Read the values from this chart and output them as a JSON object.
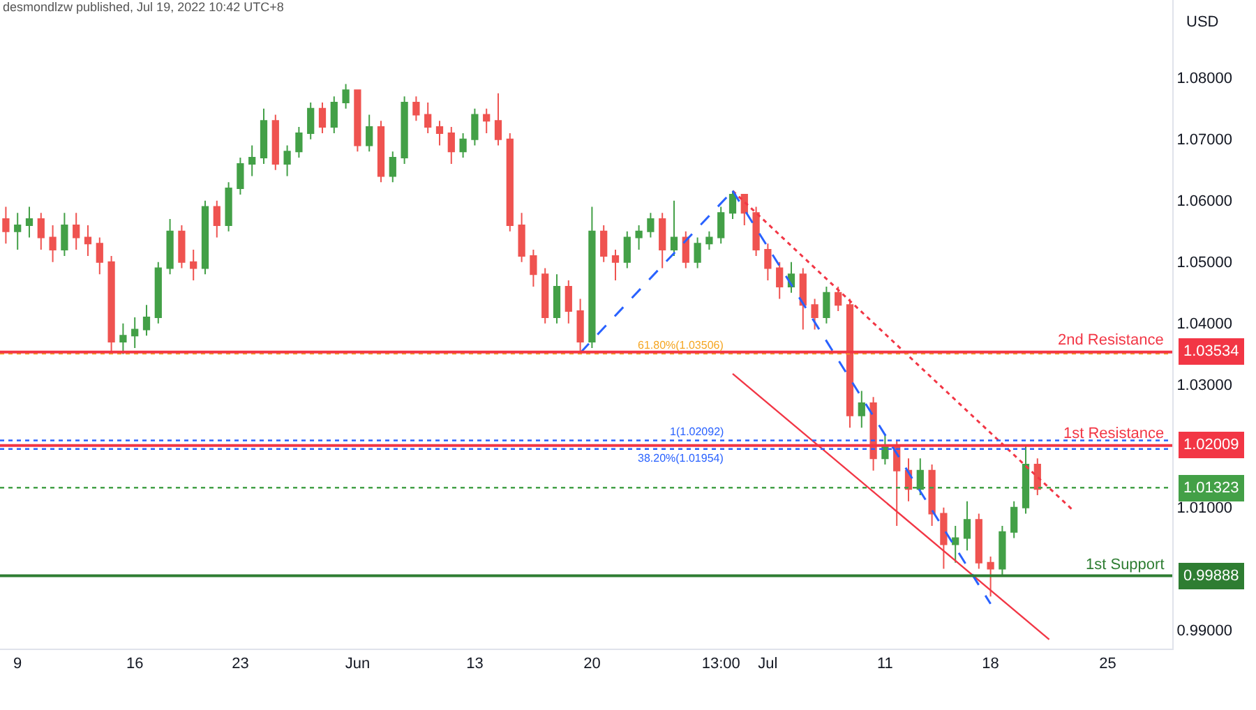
{
  "chart_data": {
    "type": "candlestick",
    "ylabel": "USD",
    "annotations": [
      "desmondlzw published, Jul 19, 2022 10:42 UTC+8",
      "1.03534",
      "1.02009",
      "1.01323",
      "0.99888"
    ],
    "categories": [
      null,
      "9",
      null,
      null,
      null,
      null,
      null,
      null,
      null,
      null,
      null,
      "16",
      null,
      null,
      null,
      null,
      null,
      null,
      null,
      null,
      "23",
      null,
      null,
      null,
      null,
      null,
      null,
      null,
      null,
      null,
      "Jun",
      null,
      null,
      null,
      null,
      null,
      null,
      null,
      null,
      null,
      "13",
      null,
      null,
      null,
      null,
      null,
      null,
      null,
      null,
      null,
      "20",
      null,
      null,
      null,
      null,
      null,
      null,
      null,
      null,
      null,
      null,
      "13:00",
      null,
      null,
      null,
      "Jul",
      null,
      null,
      null,
      null,
      null,
      null,
      null,
      null,
      null,
      "11",
      null,
      null,
      null,
      null,
      null,
      null,
      null,
      null,
      "18",
      null,
      null,
      null,
      null,
      null,
      null,
      null,
      null,
      null,
      "25",
      null,
      null,
      null,
      null,
      null
    ],
    "ohlc": [
      [
        1.057,
        1.059,
        1.053,
        1.055
      ],
      [
        1.055,
        1.058,
        1.052,
        1.056
      ],
      [
        1.056,
        1.059,
        1.054,
        1.057
      ],
      [
        1.057,
        1.058,
        1.052,
        1.054
      ],
      [
        1.054,
        1.056,
        1.05,
        1.052
      ],
      [
        1.052,
        1.058,
        1.051,
        1.056
      ],
      [
        1.056,
        1.058,
        1.052,
        1.054
      ],
      [
        1.054,
        1.056,
        1.051,
        1.053
      ],
      [
        1.053,
        1.054,
        1.048,
        1.05
      ],
      [
        1.05,
        1.051,
        1.0352,
        1.037
      ],
      [
        1.037,
        1.04,
        1.035,
        1.038
      ],
      [
        1.038,
        1.041,
        1.036,
        1.039
      ],
      [
        1.039,
        1.043,
        1.038,
        1.041
      ],
      [
        1.041,
        1.05,
        1.04,
        1.049
      ],
      [
        1.049,
        1.057,
        1.048,
        1.055
      ],
      [
        1.055,
        1.056,
        1.049,
        1.05
      ],
      [
        1.05,
        1.052,
        1.047,
        1.049
      ],
      [
        1.049,
        1.06,
        1.048,
        1.059
      ],
      [
        1.059,
        1.06,
        1.054,
        1.056
      ],
      [
        1.056,
        1.063,
        1.055,
        1.062
      ],
      [
        1.062,
        1.067,
        1.061,
        1.066
      ],
      [
        1.066,
        1.069,
        1.064,
        1.067
      ],
      [
        1.067,
        1.075,
        1.066,
        1.073
      ],
      [
        1.073,
        1.074,
        1.065,
        1.066
      ],
      [
        1.066,
        1.069,
        1.064,
        1.068
      ],
      [
        1.068,
        1.072,
        1.067,
        1.071
      ],
      [
        1.071,
        1.076,
        1.07,
        1.075
      ],
      [
        1.075,
        1.076,
        1.071,
        1.072
      ],
      [
        1.072,
        1.077,
        1.071,
        1.076
      ],
      [
        1.076,
        1.079,
        1.075,
        1.078
      ],
      [
        1.078,
        1.078,
        1.068,
        1.069
      ],
      [
        1.069,
        1.074,
        1.068,
        1.072
      ],
      [
        1.072,
        1.073,
        1.063,
        1.064
      ],
      [
        1.064,
        1.068,
        1.063,
        1.067
      ],
      [
        1.067,
        1.077,
        1.066,
        1.076
      ],
      [
        1.076,
        1.077,
        1.073,
        1.074
      ],
      [
        1.074,
        1.076,
        1.071,
        1.072
      ],
      [
        1.072,
        1.073,
        1.069,
        1.071
      ],
      [
        1.071,
        1.072,
        1.066,
        1.068
      ],
      [
        1.068,
        1.071,
        1.067,
        1.07
      ],
      [
        1.07,
        1.075,
        1.069,
        1.074
      ],
      [
        1.074,
        1.075,
        1.071,
        1.073
      ],
      [
        1.073,
        1.0775,
        1.069,
        1.07
      ],
      [
        1.07,
        1.071,
        1.055,
        1.056
      ],
      [
        1.056,
        1.058,
        1.05,
        1.051
      ],
      [
        1.051,
        1.052,
        1.046,
        1.048
      ],
      [
        1.048,
        1.049,
        1.04,
        1.041
      ],
      [
        1.041,
        1.048,
        1.04,
        1.046
      ],
      [
        1.046,
        1.047,
        1.04,
        1.042
      ],
      [
        1.042,
        1.044,
        1.0352,
        1.037
      ],
      [
        1.037,
        1.059,
        1.036,
        1.055
      ],
      [
        1.055,
        1.056,
        1.05,
        1.051
      ],
      [
        1.051,
        1.052,
        1.047,
        1.05
      ],
      [
        1.05,
        1.055,
        1.049,
        1.054
      ],
      [
        1.054,
        1.056,
        1.052,
        1.055
      ],
      [
        1.055,
        1.058,
        1.054,
        1.057
      ],
      [
        1.057,
        1.058,
        1.049,
        1.052
      ],
      [
        1.052,
        1.06,
        1.051,
        1.054
      ],
      [
        1.054,
        1.055,
        1.049,
        1.05
      ],
      [
        1.05,
        1.054,
        1.049,
        1.053
      ],
      [
        1.053,
        1.055,
        1.052,
        1.054
      ],
      [
        1.054,
        1.059,
        1.053,
        1.058
      ],
      [
        1.058,
        1.0616,
        1.057,
        1.061
      ],
      [
        1.061,
        1.061,
        1.056,
        1.058
      ],
      [
        1.058,
        1.059,
        1.051,
        1.052
      ],
      [
        1.052,
        1.053,
        1.047,
        1.049
      ],
      [
        1.049,
        1.05,
        1.044,
        1.046
      ],
      [
        1.046,
        1.05,
        1.045,
        1.048
      ],
      [
        1.048,
        1.049,
        1.039,
        1.043
      ],
      [
        1.043,
        1.044,
        1.039,
        1.041
      ],
      [
        1.041,
        1.046,
        1.04,
        1.045
      ],
      [
        1.045,
        1.046,
        1.042,
        1.043
      ],
      [
        1.043,
        1.044,
        1.023,
        1.025
      ],
      [
        1.025,
        1.029,
        1.023,
        1.027
      ],
      [
        1.027,
        1.028,
        1.016,
        1.018
      ],
      [
        1.018,
        1.022,
        1.017,
        1.02
      ],
      [
        1.02,
        1.021,
        1.007,
        1.016
      ],
      [
        1.016,
        1.018,
        1.011,
        1.013
      ],
      [
        1.013,
        1.018,
        1.012,
        1.016
      ],
      [
        1.016,
        1.017,
        1.007,
        1.009
      ],
      [
        1.009,
        1.01,
        1.0,
        1.004
      ],
      [
        1.004,
        1.007,
        1.001,
        1.005
      ],
      [
        1.005,
        1.011,
        1.003,
        1.008
      ],
      [
        1.008,
        1.009,
        1.0,
        1.001
      ],
      [
        1.001,
        1.002,
        0.9955,
        1.0
      ],
      [
        1.0,
        1.007,
        0.999,
        1.006
      ],
      [
        1.006,
        1.011,
        1.005,
        1.01
      ],
      [
        1.01,
        1.02,
        1.009,
        1.017
      ],
      [
        1.017,
        1.018,
        1.012,
        1.013
      ],
      null,
      null,
      null,
      null,
      null,
      null,
      null,
      null,
      null,
      null,
      null
    ],
    "series": [
      {
        "type": "line",
        "color": "#f23645",
        "line_style": "dotted",
        "values": [
          null,
          null,
          null,
          null,
          null,
          null,
          null,
          null,
          null,
          null,
          null,
          null,
          null,
          null,
          null,
          null,
          null,
          null,
          null,
          null,
          null,
          null,
          null,
          null,
          null,
          null,
          null,
          null,
          null,
          null,
          null,
          null,
          null,
          null,
          null,
          null,
          null,
          null,
          null,
          null,
          null,
          null,
          null,
          null,
          null,
          null,
          null,
          null,
          null,
          null,
          null,
          null,
          null,
          null,
          null,
          null,
          null,
          null,
          null,
          null,
          null,
          null,
          1.0616,
          null,
          null,
          null,
          null,
          null,
          null,
          null,
          null,
          null,
          null,
          null,
          null,
          null,
          null,
          null,
          null,
          null,
          null,
          null,
          null,
          null,
          null,
          null,
          null,
          null,
          null,
          null,
          null,
          1.0096,
          null,
          null,
          null,
          null,
          null,
          null,
          null,
          null
        ]
      },
      {
        "type": "line",
        "color": "#f23645",
        "line_style": "solid",
        "values": [
          null,
          null,
          null,
          null,
          null,
          null,
          null,
          null,
          null,
          null,
          null,
          null,
          null,
          null,
          null,
          null,
          null,
          null,
          null,
          null,
          null,
          null,
          null,
          null,
          null,
          null,
          null,
          null,
          null,
          null,
          null,
          null,
          null,
          null,
          null,
          null,
          null,
          null,
          null,
          null,
          null,
          null,
          null,
          null,
          null,
          null,
          null,
          null,
          null,
          null,
          null,
          null,
          null,
          null,
          null,
          null,
          null,
          null,
          null,
          null,
          null,
          null,
          1.0318,
          null,
          null,
          null,
          null,
          null,
          null,
          null,
          null,
          null,
          null,
          null,
          null,
          null,
          null,
          null,
          null,
          null,
          null,
          null,
          null,
          null,
          null,
          null,
          null,
          null,
          null,
          0.9885,
          null,
          null,
          null,
          null,
          null,
          null,
          null,
          null,
          null,
          null
        ]
      },
      {
        "type": "line",
        "color": "#2962ff",
        "line_style": "dashed",
        "values": [
          null,
          null,
          null,
          null,
          null,
          null,
          null,
          null,
          null,
          null,
          null,
          null,
          null,
          null,
          null,
          null,
          null,
          null,
          null,
          null,
          null,
          null,
          null,
          null,
          null,
          null,
          null,
          null,
          null,
          null,
          null,
          null,
          null,
          null,
          null,
          null,
          null,
          null,
          null,
          null,
          null,
          null,
          null,
          null,
          null,
          null,
          null,
          null,
          null,
          1.0352,
          null,
          null,
          null,
          null,
          null,
          null,
          null,
          null,
          null,
          null,
          null,
          null,
          1.0616,
          null,
          null,
          null,
          null,
          null,
          null,
          null,
          null,
          null,
          null,
          null,
          null,
          null,
          null,
          null,
          null,
          null,
          null,
          null,
          null,
          null,
          null,
          null,
          null,
          null,
          null,
          null,
          null,
          null,
          null,
          null,
          null,
          null,
          null,
          null,
          null,
          null
        ]
      },
      {
        "type": "line",
        "color": "#2962ff",
        "line_style": "dashed",
        "values": [
          null,
          null,
          null,
          null,
          null,
          null,
          null,
          null,
          null,
          null,
          null,
          null,
          null,
          null,
          null,
          null,
          null,
          null,
          null,
          null,
          null,
          null,
          null,
          null,
          null,
          null,
          null,
          null,
          null,
          null,
          null,
          null,
          null,
          null,
          null,
          null,
          null,
          null,
          null,
          null,
          null,
          null,
          null,
          null,
          null,
          null,
          null,
          null,
          null,
          null,
          null,
          null,
          null,
          null,
          null,
          null,
          null,
          null,
          null,
          null,
          null,
          null,
          1.0616,
          null,
          null,
          null,
          null,
          null,
          null,
          null,
          null,
          null,
          null,
          null,
          null,
          null,
          null,
          null,
          null,
          null,
          null,
          null,
          null,
          null,
          0.9943,
          null,
          null,
          null,
          null,
          null,
          null,
          null,
          null,
          null,
          null,
          null,
          null,
          null,
          null,
          null
        ]
      }
    ],
    "ylim": [
      0.987,
      1.0927
    ],
    "yticks": [
      {
        "value": 0.99,
        "label": "0.99000"
      },
      {
        "value": 1.01,
        "label": "1.01000"
      },
      {
        "value": 1.02,
        "label": null
      },
      {
        "value": 1.03,
        "label": "1.03000"
      },
      {
        "value": 1.04,
        "label": "1.04000"
      },
      {
        "value": 1.05,
        "label": "1.05000"
      },
      {
        "value": 1.06,
        "label": "1.06000"
      },
      {
        "value": 1.07,
        "label": "1.07000"
      },
      {
        "value": 1.08,
        "label": "1.08000"
      }
    ],
    "ref_lines": [
      {
        "axis": "y",
        "value": 1.03506,
        "label": "61.80%(1.03506)",
        "color": "#f5a623",
        "line_style": "dotted"
      },
      {
        "axis": "y",
        "value": 1.03534,
        "label": "2nd Resistance",
        "color": "#f23645",
        "line_style": "solid"
      },
      {
        "axis": "y",
        "value": 1.02092,
        "label": "1(1.02092)",
        "color": "#2962ff",
        "line_style": "dotted"
      },
      {
        "axis": "y",
        "value": 1.01954,
        "label": "38.20%(1.01954)",
        "color": "#2962ff",
        "line_style": "dotted"
      },
      {
        "axis": "y",
        "value": 1.02009,
        "label": "1st Resistance",
        "color": "#f23645",
        "line_style": "solid"
      },
      {
        "axis": "y",
        "value": 1.01323,
        "label": null,
        "color": "#43a047",
        "line_style": "dotted"
      },
      {
        "axis": "y",
        "value": 0.99888,
        "label": "1st Support",
        "color": "#2e7d32",
        "line_style": "solid"
      }
    ],
    "grid": false
  }
}
